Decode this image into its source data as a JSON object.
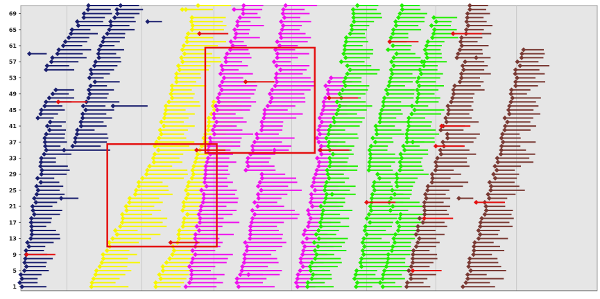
{
  "chart_data": {
    "type": "scatter",
    "title": "",
    "xlabel": "",
    "ylabel": "",
    "ylim": [
      0,
      71
    ],
    "y_ticks": [
      "69",
      "65",
      "61",
      "57",
      "53",
      "49",
      "45",
      "41",
      "37",
      "33",
      "29",
      "25",
      "21",
      "17",
      "13",
      "9",
      "5",
      "1"
    ],
    "grid": true,
    "legend": "none",
    "colors": {
      "background": "#e6e6e6",
      "grid": "#c8c8c8",
      "highlight_box": "#e41010",
      "outlier": "#e41010",
      "series": [
        "#1a1f6e",
        "#f7f700",
        "#ee10ee",
        "#22ee00",
        "#7a3a34"
      ]
    },
    "clusters": [
      {
        "color_index": 0,
        "columns": [
          {
            "x0": 0.044,
            "x1": 0.12,
            "y0": 55,
            "y1": 71,
            "len": 0.055
          },
          {
            "x0": 0.03,
            "x1": 0.06,
            "y0": 43,
            "y1": 50,
            "len": 0.04
          },
          {
            "x0": 0.0,
            "x1": 0.05,
            "y0": 1,
            "y1": 42,
            "len": 0.045
          },
          {
            "x0": 0.12,
            "x1": 0.17,
            "y0": 53,
            "y1": 71,
            "len": 0.04
          },
          {
            "x0": 0.09,
            "x1": 0.125,
            "y0": 36,
            "y1": 52,
            "len": 0.05
          }
        ],
        "outliers": [
          {
            "x": 0.22,
            "y": 67,
            "len": 0.025
          },
          {
            "x": 0.16,
            "y": 46,
            "len": 0.06
          },
          {
            "x": 0.075,
            "y": 35,
            "len": 0.08
          },
          {
            "x": 0.07,
            "y": 23,
            "len": 0.03
          },
          {
            "x": 0.015,
            "y": 59,
            "len": 0.03
          }
        ],
        "red": [
          {
            "x": 0.01,
            "y": 9
          },
          {
            "x": 0.065,
            "y": 47
          }
        ]
      },
      {
        "color_index": 1,
        "columns": [
          {
            "x0": 0.29,
            "x1": 0.31,
            "y0": 70,
            "y1": 71,
            "len": 0.06
          },
          {
            "x0": 0.235,
            "x1": 0.3,
            "y0": 36,
            "y1": 68,
            "len": 0.06
          },
          {
            "x0": 0.18,
            "x1": 0.24,
            "y0": 20,
            "y1": 35,
            "len": 0.065
          },
          {
            "x0": 0.12,
            "x1": 0.18,
            "y0": 1,
            "y1": 19,
            "len": 0.07
          },
          {
            "x0": 0.28,
            "x1": 0.34,
            "y0": 20,
            "y1": 48,
            "len": 0.05
          },
          {
            "x0": 0.235,
            "x1": 0.29,
            "y0": 1,
            "y1": 19,
            "len": 0.06
          }
        ],
        "outliers": [
          {
            "x": 0.28,
            "y": 70,
            "len": 0.02
          }
        ],
        "red": []
      },
      {
        "color_index": 2,
        "columns": [
          {
            "x0": 0.35,
            "x1": 0.39,
            "y0": 55,
            "y1": 71,
            "len": 0.04
          },
          {
            "x0": 0.29,
            "x1": 0.35,
            "y0": 1,
            "y1": 54,
            "len": 0.06
          },
          {
            "x0": 0.44,
            "x1": 0.46,
            "y0": 56,
            "y1": 71,
            "len": 0.05
          },
          {
            "x0": 0.39,
            "x1": 0.45,
            "y0": 30,
            "y1": 55,
            "len": 0.06
          },
          {
            "x0": 0.375,
            "x1": 0.42,
            "y0": 1,
            "y1": 29,
            "len": 0.07
          },
          {
            "x0": 0.515,
            "x1": 0.535,
            "y0": 37,
            "y1": 53,
            "len": 0.04
          },
          {
            "x0": 0.48,
            "x1": 0.52,
            "y0": 1,
            "y1": 36,
            "len": 0.045
          }
        ],
        "outliers": [
          {
            "x": 0.37,
            "y": 70,
            "len": 0.02
          },
          {
            "x": 0.44,
            "y": 35,
            "len": 0.025
          },
          {
            "x": 0.395,
            "y": 4,
            "len": 0.025
          }
        ],
        "red": [
          {
            "x": 0.31,
            "y": 64
          },
          {
            "x": 0.39,
            "y": 52
          },
          {
            "x": 0.305,
            "y": 35
          },
          {
            "x": 0.26,
            "y": 12
          }
        ]
      },
      {
        "color_index": 3,
        "columns": [
          {
            "x0": 0.56,
            "x1": 0.58,
            "y0": 57,
            "y1": 71,
            "len": 0.045
          },
          {
            "x0": 0.53,
            "x1": 0.57,
            "y0": 36,
            "y1": 56,
            "len": 0.05
          },
          {
            "x0": 0.5,
            "x1": 0.54,
            "y0": 1,
            "y1": 35,
            "len": 0.05
          },
          {
            "x0": 0.64,
            "x1": 0.66,
            "y0": 60,
            "y1": 71,
            "len": 0.045
          },
          {
            "x0": 0.6,
            "x1": 0.65,
            "y0": 30,
            "y1": 59,
            "len": 0.05
          },
          {
            "x0": 0.58,
            "x1": 0.62,
            "y0": 1,
            "y1": 29,
            "len": 0.05
          },
          {
            "x0": 0.69,
            "x1": 0.72,
            "y0": 52,
            "y1": 68,
            "len": 0.04
          },
          {
            "x0": 0.64,
            "x1": 0.69,
            "y0": 20,
            "y1": 51,
            "len": 0.05
          },
          {
            "x0": 0.625,
            "x1": 0.66,
            "y0": 1,
            "y1": 19,
            "len": 0.045
          }
        ],
        "outliers": [
          {
            "x": 0.7,
            "y": 57,
            "len": 0.02
          },
          {
            "x": 0.68,
            "y": 37,
            "len": 0.02
          },
          {
            "x": 0.54,
            "y": 24,
            "len": 0.025
          }
        ],
        "red": [
          {
            "x": 0.535,
            "y": 48
          },
          {
            "x": 0.52,
            "y": 35
          },
          {
            "x": 0.6,
            "y": 22
          },
          {
            "x": 0.64,
            "y": 62
          }
        ]
      },
      {
        "color_index": 4,
        "columns": [
          {
            "x0": 0.76,
            "x1": 0.78,
            "y0": 58,
            "y1": 71,
            "len": 0.045
          },
          {
            "x0": 0.73,
            "x1": 0.77,
            "y0": 40,
            "y1": 57,
            "len": 0.05
          },
          {
            "x0": 0.7,
            "x1": 0.74,
            "y0": 22,
            "y1": 39,
            "len": 0.055
          },
          {
            "x0": 0.67,
            "x1": 0.7,
            "y0": 1,
            "y1": 21,
            "len": 0.05
          },
          {
            "x0": 0.83,
            "x1": 0.87,
            "y0": 35,
            "y1": 60,
            "len": 0.05
          },
          {
            "x0": 0.77,
            "x1": 0.83,
            "y0": 1,
            "y1": 34,
            "len": 0.055
          }
        ],
        "outliers": [
          {
            "x": 0.76,
            "y": 23,
            "len": 0.025
          },
          {
            "x": 0.79,
            "y": 58,
            "len": 0.025
          }
        ],
        "red": [
          {
            "x": 0.73,
            "y": 41
          },
          {
            "x": 0.72,
            "y": 36
          },
          {
            "x": 0.7,
            "y": 18
          },
          {
            "x": 0.68,
            "y": 5
          },
          {
            "x": 0.75,
            "y": 64
          },
          {
            "x": 0.79,
            "y": 22
          }
        ]
      }
    ],
    "highlight_boxes": [
      {
        "x0": 0.15,
        "x1": 0.34,
        "y_top": 36.5,
        "y_bottom": 11.0
      },
      {
        "x0": 0.32,
        "x1": 0.51,
        "y_top": 60.5,
        "y_bottom": 34.3
      }
    ]
  }
}
